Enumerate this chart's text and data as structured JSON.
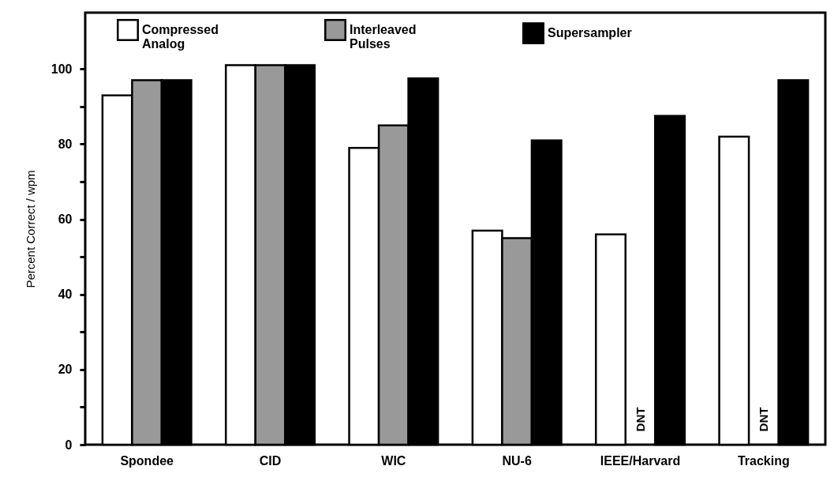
{
  "chart_data": {
    "type": "bar",
    "ylabel": "Percent Correct / wpm",
    "categories": [
      "Spondee",
      "CID",
      "WIC",
      "NU-6",
      "IEEE/Harvard",
      "Tracking"
    ],
    "series": [
      {
        "name": "Compressed Analog",
        "color": "#ffffff",
        "values": [
          93,
          101,
          79,
          57,
          56,
          82
        ]
      },
      {
        "name": "Interleaved Pulses",
        "color": "#999999",
        "values": [
          97,
          101,
          85,
          55,
          null,
          null
        ]
      },
      {
        "name": "Supersampler",
        "color": "#000000",
        "values": [
          97,
          101,
          97.5,
          81,
          87.5,
          97
        ]
      }
    ],
    "ylim": [
      0,
      115
    ],
    "yticks": [
      0,
      {
        "value": 10,
        "label": null
      },
      20,
      {
        "value": 30,
        "label": null
      },
      40,
      {
        "value": 50,
        "label": null
      },
      60,
      {
        "value": 70,
        "label": null
      },
      80,
      {
        "value": 90,
        "label": null
      },
      100
    ],
    "annotations": [
      "DNT",
      "DNT"
    ],
    "grid": false,
    "legend": "top"
  }
}
